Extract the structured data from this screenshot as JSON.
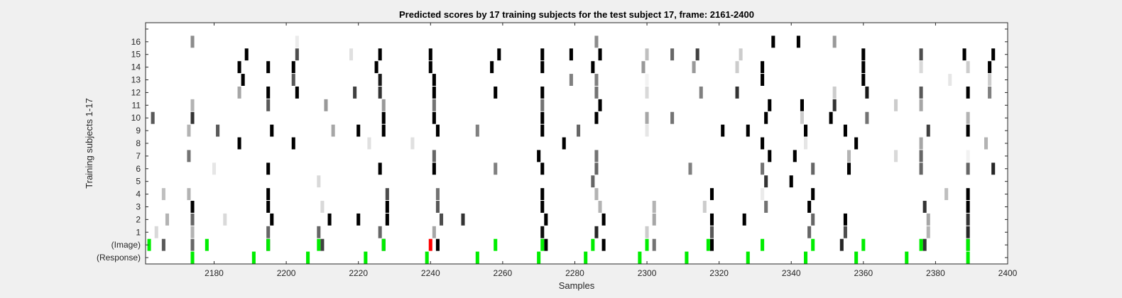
{
  "chart_data": {
    "type": "heatmap",
    "title": "Predicted scores by 17 training subjects for the test subject 17, frame: 2161-2400",
    "xlabel": "Samples",
    "ylabel": "Training subjects 1-17",
    "xlim": [
      2161,
      2400
    ],
    "x_ticks": [
      2180,
      2200,
      2220,
      2240,
      2260,
      2280,
      2300,
      2320,
      2340,
      2360,
      2380,
      2400
    ],
    "row_labels": [
      "(Response)",
      "(Image)",
      "1",
      "2",
      "3",
      "4",
      "5",
      "6",
      "7",
      "8",
      "9",
      "10",
      "11",
      "12",
      "13",
      "14",
      "15",
      "16",
      ""
    ],
    "colors": {
      "background": "#ffffff",
      "correct": "#00ee00",
      "wrong": "#ff0000",
      "figure_bg": "#f0f0f0"
    },
    "response_marks": [
      2174,
      2191,
      2206,
      2222,
      2239,
      2253,
      2270,
      2283,
      2298,
      2311,
      2328,
      2344,
      2358,
      2372,
      2389
    ],
    "image_marks": [
      {
        "x": 2162,
        "status": "correct"
      },
      {
        "x": 2178,
        "status": "correct"
      },
      {
        "x": 2195,
        "status": "correct"
      },
      {
        "x": 2209,
        "status": "correct"
      },
      {
        "x": 2227,
        "status": "correct"
      },
      {
        "x": 2240,
        "status": "wrong"
      },
      {
        "x": 2258,
        "status": "correct"
      },
      {
        "x": 2271,
        "status": "correct"
      },
      {
        "x": 2285,
        "status": "correct"
      },
      {
        "x": 2300,
        "status": "correct"
      },
      {
        "x": 2317,
        "status": "correct"
      },
      {
        "x": 2332,
        "status": "correct"
      },
      {
        "x": 2346,
        "status": "correct"
      },
      {
        "x": 2360,
        "status": "correct"
      },
      {
        "x": 2376,
        "status": "correct"
      },
      {
        "x": 2389,
        "status": "correct"
      }
    ],
    "score_cells": [
      [
        2166,
        1,
        0.65
      ],
      [
        2174,
        1,
        0.6
      ],
      [
        2195,
        1,
        1
      ],
      [
        2210,
        1,
        0.75
      ],
      [
        2227,
        1,
        0.95
      ],
      [
        2242,
        1,
        1
      ],
      [
        2272,
        1,
        1
      ],
      [
        2288,
        1,
        1
      ],
      [
        2302,
        1,
        0.55
      ],
      [
        2318,
        1,
        1
      ],
      [
        2354,
        1,
        0.85
      ],
      [
        2377,
        1,
        0.8
      ],
      [
        2389,
        1,
        1
      ],
      [
        2164,
        2,
        0.15
      ],
      [
        2174,
        2,
        0.3
      ],
      [
        2195,
        2,
        0.6
      ],
      [
        2209,
        2,
        0.6
      ],
      [
        2226,
        2,
        0.6
      ],
      [
        2241,
        2,
        0.35
      ],
      [
        2271,
        2,
        0.95
      ],
      [
        2286,
        2,
        0.85
      ],
      [
        2300,
        2,
        0.2
      ],
      [
        2318,
        2,
        0.65
      ],
      [
        2345,
        2,
        0.6
      ],
      [
        2355,
        2,
        0.7
      ],
      [
        2378,
        2,
        0.3
      ],
      [
        2389,
        2,
        0.85
      ],
      [
        2167,
        3,
        0.3
      ],
      [
        2174,
        3,
        0.6
      ],
      [
        2183,
        3,
        0.15
      ],
      [
        2196,
        3,
        1
      ],
      [
        2212,
        3,
        1
      ],
      [
        2220,
        3,
        1
      ],
      [
        2228,
        3,
        1
      ],
      [
        2243,
        3,
        0.7
      ],
      [
        2249,
        3,
        0.8
      ],
      [
        2272,
        3,
        1
      ],
      [
        2288,
        3,
        1
      ],
      [
        2302,
        3,
        0.35
      ],
      [
        2318,
        3,
        1
      ],
      [
        2327,
        3,
        1
      ],
      [
        2346,
        3,
        0.6
      ],
      [
        2355,
        3,
        1
      ],
      [
        2378,
        3,
        0.35
      ],
      [
        2389,
        3,
        0.8
      ],
      [
        2174,
        4,
        1
      ],
      [
        2195,
        4,
        1
      ],
      [
        2210,
        4,
        0.15
      ],
      [
        2228,
        4,
        1
      ],
      [
        2242,
        4,
        0.65
      ],
      [
        2271,
        4,
        1
      ],
      [
        2287,
        4,
        0.3
      ],
      [
        2302,
        4,
        0.3
      ],
      [
        2316,
        4,
        0.2
      ],
      [
        2333,
        4,
        0.55
      ],
      [
        2345,
        4,
        1
      ],
      [
        2377,
        4,
        0.8
      ],
      [
        2389,
        4,
        1
      ],
      [
        2166,
        5,
        0.25
      ],
      [
        2173,
        5,
        0.3
      ],
      [
        2195,
        5,
        1
      ],
      [
        2228,
        5,
        0.7
      ],
      [
        2242,
        5,
        0.55
      ],
      [
        2271,
        5,
        1
      ],
      [
        2286,
        5,
        0.3
      ],
      [
        2318,
        5,
        1
      ],
      [
        2332,
        5,
        0.08
      ],
      [
        2346,
        5,
        1
      ],
      [
        2383,
        5,
        0.25
      ],
      [
        2389,
        5,
        1
      ],
      [
        2209,
        6,
        0.15
      ],
      [
        2285,
        6,
        0.6
      ],
      [
        2333,
        6,
        0.8
      ],
      [
        2340,
        6,
        1
      ],
      [
        2180,
        7,
        0.1
      ],
      [
        2195,
        7,
        1
      ],
      [
        2226,
        7,
        1
      ],
      [
        2241,
        7,
        1
      ],
      [
        2258,
        7,
        0.5
      ],
      [
        2271,
        7,
        1
      ],
      [
        2286,
        7,
        0.6
      ],
      [
        2312,
        7,
        0.5
      ],
      [
        2332,
        7,
        0.55
      ],
      [
        2346,
        7,
        0.6
      ],
      [
        2356,
        7,
        1
      ],
      [
        2376,
        7,
        0.6
      ],
      [
        2389,
        7,
        0.6
      ],
      [
        2396,
        7,
        0.85
      ],
      [
        2173,
        8,
        0.55
      ],
      [
        2241,
        8,
        0.6
      ],
      [
        2270,
        8,
        1
      ],
      [
        2286,
        8,
        0.55
      ],
      [
        2334,
        8,
        1
      ],
      [
        2341,
        8,
        1
      ],
      [
        2356,
        8,
        0.3
      ],
      [
        2369,
        8,
        0.15
      ],
      [
        2376,
        8,
        0.6
      ],
      [
        2389,
        8,
        0.05
      ],
      [
        2187,
        9,
        1
      ],
      [
        2202,
        9,
        1
      ],
      [
        2223,
        9,
        0.12
      ],
      [
        2235,
        9,
        0.12
      ],
      [
        2277,
        9,
        1
      ],
      [
        2332,
        9,
        1
      ],
      [
        2344,
        9,
        0.1
      ],
      [
        2358,
        9,
        1
      ],
      [
        2376,
        9,
        0.35
      ],
      [
        2394,
        9,
        0.3
      ],
      [
        2173,
        10,
        0.3
      ],
      [
        2181,
        10,
        0.65
      ],
      [
        2196,
        10,
        1
      ],
      [
        2213,
        10,
        0.35
      ],
      [
        2220,
        10,
        1
      ],
      [
        2227,
        10,
        1
      ],
      [
        2242,
        10,
        1
      ],
      [
        2253,
        10,
        0.5
      ],
      [
        2271,
        10,
        1
      ],
      [
        2281,
        10,
        0.6
      ],
      [
        2300,
        10,
        0.1
      ],
      [
        2321,
        10,
        1
      ],
      [
        2328,
        10,
        1
      ],
      [
        2344,
        10,
        1
      ],
      [
        2355,
        10,
        1
      ],
      [
        2378,
        10,
        0.75
      ],
      [
        2389,
        10,
        1
      ],
      [
        2163,
        11,
        0.65
      ],
      [
        2174,
        11,
        0.8
      ],
      [
        2227,
        11,
        1
      ],
      [
        2241,
        11,
        1
      ],
      [
        2271,
        11,
        1
      ],
      [
        2286,
        11,
        1
      ],
      [
        2300,
        11,
        0.35
      ],
      [
        2307,
        11,
        0.55
      ],
      [
        2333,
        11,
        1
      ],
      [
        2343,
        11,
        0.2
      ],
      [
        2351,
        11,
        1
      ],
      [
        2361,
        11,
        0.55
      ],
      [
        2389,
        11,
        0.3
      ],
      [
        2174,
        12,
        0.3
      ],
      [
        2195,
        12,
        0.65
      ],
      [
        2211,
        12,
        0.4
      ],
      [
        2227,
        12,
        0.4
      ],
      [
        2241,
        12,
        0.55
      ],
      [
        2271,
        12,
        0.55
      ],
      [
        2287,
        12,
        1
      ],
      [
        2334,
        12,
        1
      ],
      [
        2343,
        12,
        1
      ],
      [
        2352,
        12,
        0.8
      ],
      [
        2369,
        12,
        0.2
      ],
      [
        2376,
        12,
        0.35
      ],
      [
        2187,
        13,
        0.35
      ],
      [
        2195,
        13,
        1
      ],
      [
        2203,
        13,
        1
      ],
      [
        2219,
        13,
        0.75
      ],
      [
        2226,
        13,
        0.8
      ],
      [
        2241,
        13,
        1
      ],
      [
        2258,
        13,
        1
      ],
      [
        2271,
        13,
        1
      ],
      [
        2286,
        13,
        0.55
      ],
      [
        2300,
        13,
        0.15
      ],
      [
        2315,
        13,
        0.5
      ],
      [
        2325,
        13,
        0.8
      ],
      [
        2352,
        13,
        0.2
      ],
      [
        2361,
        13,
        0.9
      ],
      [
        2376,
        13,
        0.65
      ],
      [
        2389,
        13,
        1
      ],
      [
        2395,
        13,
        0.5
      ],
      [
        2188,
        14,
        1
      ],
      [
        2202,
        14,
        0.65
      ],
      [
        2226,
        14,
        0.9
      ],
      [
        2241,
        14,
        1
      ],
      [
        2279,
        14,
        0.5
      ],
      [
        2286,
        14,
        0.5
      ],
      [
        2300,
        14,
        0.05
      ],
      [
        2332,
        14,
        1
      ],
      [
        2360,
        14,
        1
      ],
      [
        2384,
        14,
        0.1
      ],
      [
        2395,
        14,
        0.2
      ],
      [
        2187,
        15,
        1
      ],
      [
        2195,
        15,
        1
      ],
      [
        2202,
        15,
        1
      ],
      [
        2225,
        15,
        1
      ],
      [
        2240,
        15,
        1
      ],
      [
        2257,
        15,
        1
      ],
      [
        2271,
        15,
        1
      ],
      [
        2285,
        15,
        1
      ],
      [
        2299,
        15,
        0.4
      ],
      [
        2313,
        15,
        0.4
      ],
      [
        2325,
        15,
        0.2
      ],
      [
        2332,
        15,
        1
      ],
      [
        2360,
        15,
        1
      ],
      [
        2376,
        15,
        0.15
      ],
      [
        2389,
        15,
        0.2
      ],
      [
        2395,
        15,
        1
      ],
      [
        2189,
        16,
        1
      ],
      [
        2203,
        16,
        0.7
      ],
      [
        2218,
        16,
        0.12
      ],
      [
        2226,
        16,
        1
      ],
      [
        2240,
        16,
        1
      ],
      [
        2259,
        16,
        1
      ],
      [
        2271,
        16,
        1
      ],
      [
        2279,
        16,
        1
      ],
      [
        2287,
        16,
        1
      ],
      [
        2300,
        16,
        0.25
      ],
      [
        2307,
        16,
        0.6
      ],
      [
        2314,
        16,
        0.75
      ],
      [
        2326,
        16,
        0.2
      ],
      [
        2360,
        16,
        1
      ],
      [
        2376,
        16,
        0.7
      ],
      [
        2388,
        16,
        1
      ],
      [
        2396,
        16,
        1
      ],
      [
        2174,
        17,
        0.45
      ],
      [
        2203,
        17,
        0.08
      ],
      [
        2286,
        17,
        0.45
      ],
      [
        2335,
        17,
        1
      ],
      [
        2342,
        17,
        1
      ],
      [
        2352,
        17,
        0.4
      ]
    ]
  }
}
